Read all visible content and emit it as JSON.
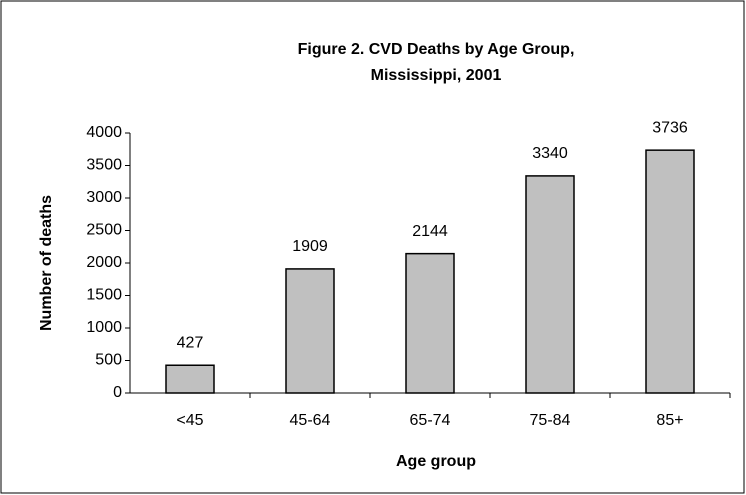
{
  "chart_data": {
    "type": "bar",
    "title": [
      "Figure 2. CVD Deaths by Age Group,",
      "Mississippi, 2001"
    ],
    "x_label": "Age group",
    "y_label": "Number of deaths",
    "categories": [
      "<45",
      "45-64",
      "65-74",
      "75-84",
      "85+"
    ],
    "values": [
      427,
      1909,
      2144,
      3340,
      3736
    ],
    "color": "#c0c0c0",
    "ylim": [
      0,
      4000
    ],
    "yticks": [
      0,
      500,
      1000,
      1500,
      2000,
      2500,
      3000,
      3500,
      4000
    ],
    "grid": false
  }
}
